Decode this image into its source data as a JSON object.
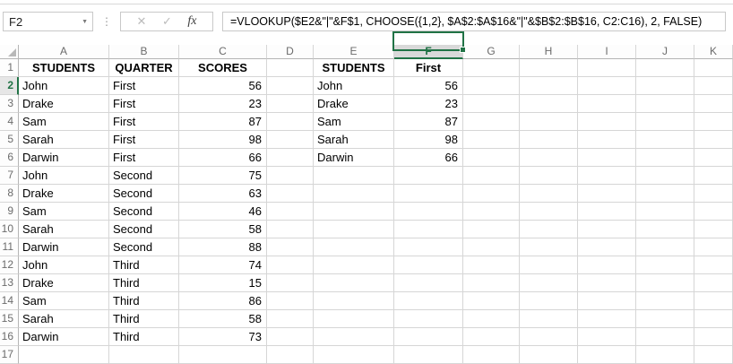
{
  "formula_bar": {
    "name_box_value": "F2",
    "dropdown_icon": "▼",
    "separator_dots": "⋮",
    "cancel_icon": "✕",
    "enter_icon": "✓",
    "fx_icon": "fx",
    "formula": "=VLOOKUP($E2&\"|\"&F$1, CHOOSE({1,2}, $A$2:$A$16&\"|\"&$B$2:$B$16, C2:C16), 2, FALSE)"
  },
  "sheet": {
    "selected_cell": "F2",
    "selected_column": "F",
    "selected_row": 2,
    "column_letters": [
      "A",
      "B",
      "C",
      "D",
      "E",
      "F",
      "G",
      "H",
      "I",
      "J",
      "K"
    ],
    "row_numbers": [
      1,
      2,
      3,
      4,
      5,
      6,
      7,
      8,
      9,
      10,
      11,
      12,
      13,
      14,
      15,
      16,
      17
    ],
    "tables": {
      "left": {
        "start_column": "A",
        "headers": [
          "STUDENTS",
          "QUARTER",
          "SCORES"
        ],
        "rows": [
          [
            "John",
            "First",
            56
          ],
          [
            "Drake",
            "First",
            23
          ],
          [
            "Sam",
            "First",
            87
          ],
          [
            "Sarah",
            "First",
            98
          ],
          [
            "Darwin",
            "First",
            66
          ],
          [
            "John",
            "Second",
            75
          ],
          [
            "Drake",
            "Second",
            63
          ],
          [
            "Sam",
            "Second",
            46
          ],
          [
            "Sarah",
            "Second",
            58
          ],
          [
            "Darwin",
            "Second",
            88
          ],
          [
            "John",
            "Third",
            74
          ],
          [
            "Drake",
            "Third",
            15
          ],
          [
            "Sam",
            "Third",
            86
          ],
          [
            "Sarah",
            "Third",
            58
          ],
          [
            "Darwin",
            "Third",
            73
          ]
        ]
      },
      "right": {
        "start_column": "E",
        "headers": [
          "STUDENTS",
          "First"
        ],
        "rows": [
          [
            "John",
            56
          ],
          [
            "Drake",
            23
          ],
          [
            "Sam",
            87
          ],
          [
            "Sarah",
            98
          ],
          [
            "Darwin",
            66
          ]
        ]
      }
    },
    "colors": {
      "accent_green": "#217346",
      "selected_column_header_bg": "#d9d9d9",
      "selected_row_header_bg": "#e6e6e6",
      "gridline": "#d6d6d6"
    }
  }
}
